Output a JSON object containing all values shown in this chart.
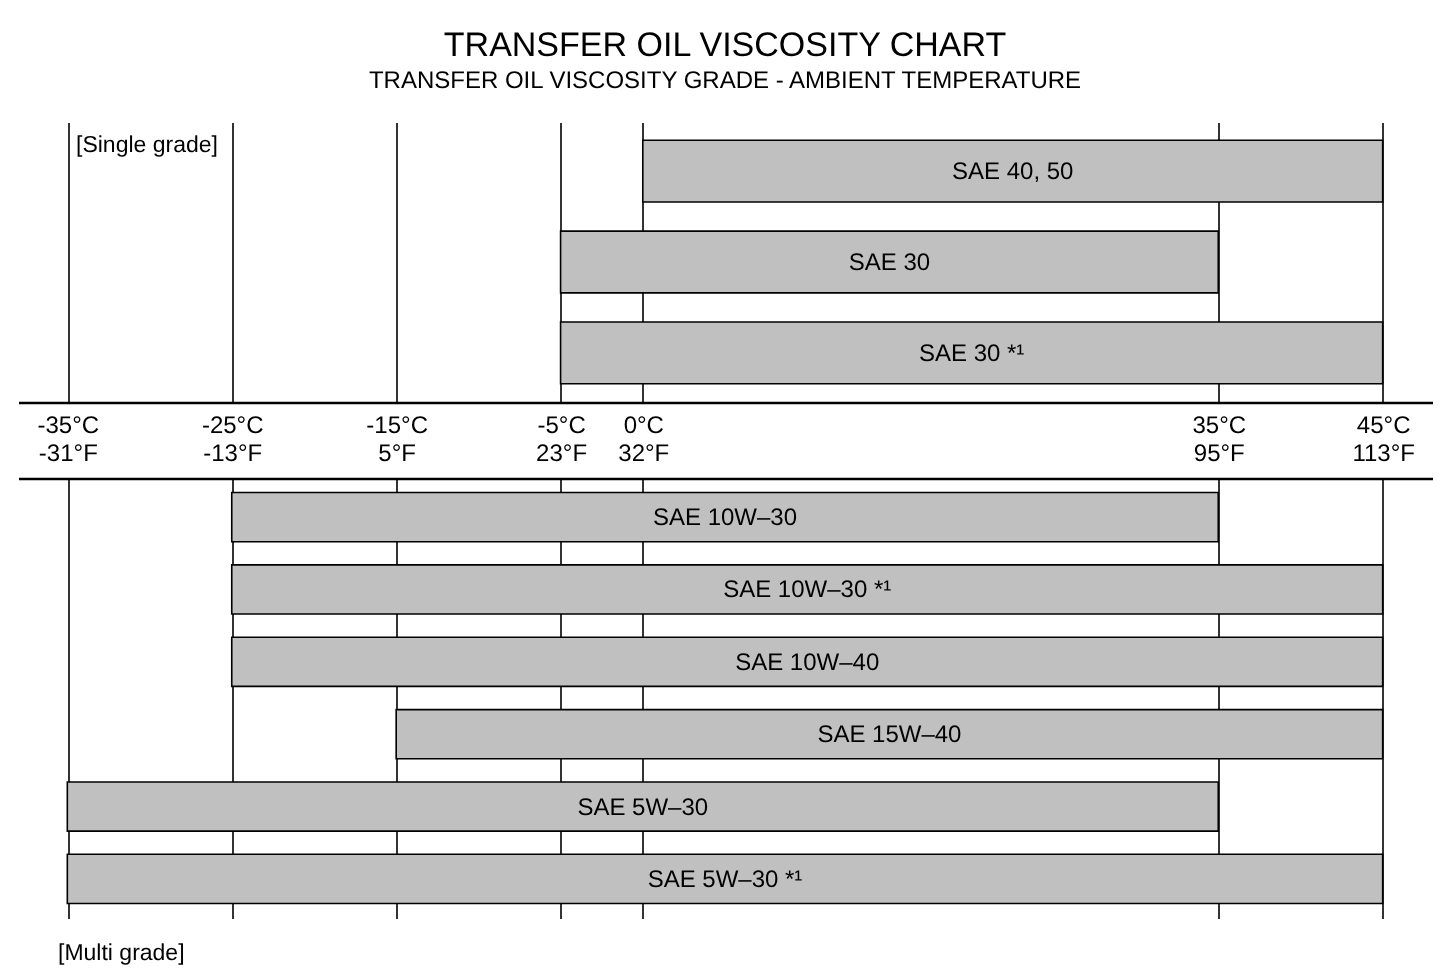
{
  "chart_data": [
    {
      "type": "bar",
      "orientation": "horizontal",
      "title": "TRANSFER OIL VISCOSITY CHART",
      "subtitle": "TRANSFER OIL VISCOSITY GRADE - AMBIENT TEMPERATURE",
      "annotations": [
        "[Single grade]"
      ],
      "categories": [
        "SAE 40, 50",
        "SAE 30",
        "SAE 30 *¹"
      ],
      "values": [
        45,
        40,
        50
      ],
      "base": [
        0,
        -5,
        -5
      ],
      "color": "#c0c0c0",
      "xlim": [
        -38,
        48
      ],
      "xticks": [
        {
          "value": -35,
          "label": "-35°C"
        },
        {
          "value": -25,
          "label": "-25°C"
        },
        {
          "value": -15,
          "label": "-15°C"
        },
        {
          "value": -5,
          "label": "-5°C"
        },
        {
          "value": 0,
          "label": "0°C"
        },
        {
          "value": 35,
          "label": "35°C"
        },
        {
          "value": 45,
          "label": "45°C"
        }
      ],
      "grid": "x"
    },
    {
      "type": "bar",
      "orientation": "horizontal",
      "annotations": [
        "[Multi grade]"
      ],
      "categories": [
        "SAE 10W–30",
        "SAE 10W–30 *¹",
        "SAE 10W–40",
        "SAE 15W–40",
        "SAE 5W–30",
        "SAE 5W–30 *¹"
      ],
      "values": [
        108,
        126,
        126,
        108,
        126,
        144
      ],
      "base": [
        -13,
        -13,
        -13,
        5,
        -31,
        -31
      ],
      "color": "#c0c0c0",
      "xlim": [
        -36.4,
        118.4
      ],
      "xticks": [
        {
          "value": -31,
          "label": "-31°F"
        },
        {
          "value": -13,
          "label": "-13°F"
        },
        {
          "value": 5,
          "label": "5°F"
        },
        {
          "value": 23,
          "label": "23°F"
        },
        {
          "value": 32,
          "label": "32°F"
        },
        {
          "value": 95,
          "label": "95°F"
        },
        {
          "value": 113,
          "label": "113°F"
        }
      ],
      "grid": "x"
    }
  ]
}
